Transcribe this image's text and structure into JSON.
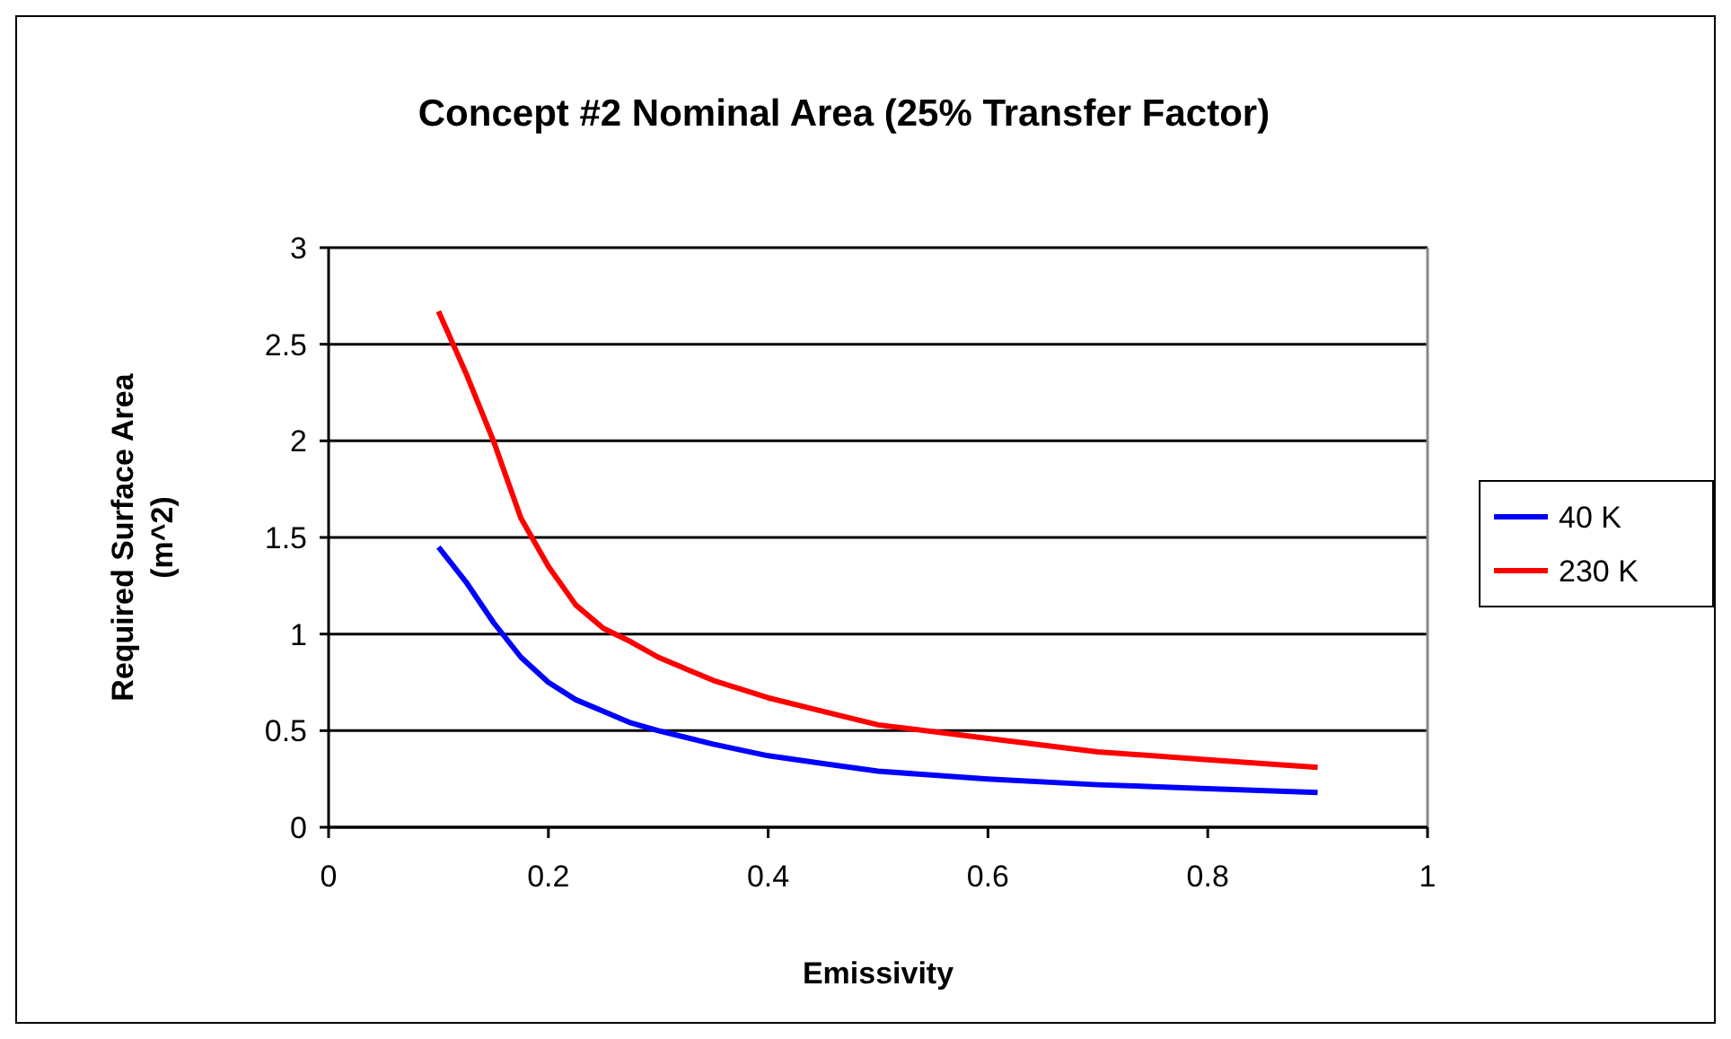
{
  "chart_data": {
    "type": "line",
    "title": "Concept #2 Nominal Area (25% Transfer Factor)",
    "xlabel": "Emissivity",
    "ylabel": "Required Surface Area (m^2)",
    "x": [
      0.1,
      0.125,
      0.15,
      0.175,
      0.2,
      0.225,
      0.25,
      0.275,
      0.3,
      0.35,
      0.4,
      0.45,
      0.5,
      0.6,
      0.7,
      0.8,
      0.9
    ],
    "series": [
      {
        "name": "40 K",
        "color": "#0000ff",
        "values": [
          1.45,
          1.27,
          1.06,
          0.88,
          0.75,
          0.66,
          0.6,
          0.54,
          0.5,
          0.43,
          0.37,
          0.33,
          0.29,
          0.25,
          0.22,
          0.2,
          0.18
        ]
      },
      {
        "name": "230 K",
        "color": "#ff0000",
        "values": [
          2.67,
          2.35,
          2.0,
          1.6,
          1.35,
          1.15,
          1.03,
          0.96,
          0.88,
          0.76,
          0.67,
          0.6,
          0.53,
          0.46,
          0.39,
          0.35,
          0.31
        ]
      }
    ],
    "xlim": [
      0,
      1
    ],
    "xticks": [
      0,
      0.2,
      0.4,
      0.6,
      0.8,
      1
    ],
    "ylim": [
      0,
      3
    ],
    "yticks": [
      0,
      0.5,
      1,
      1.5,
      2,
      2.5,
      3
    ],
    "grid": "y",
    "legend": "right",
    "marker": "none",
    "line_style": "solid"
  }
}
